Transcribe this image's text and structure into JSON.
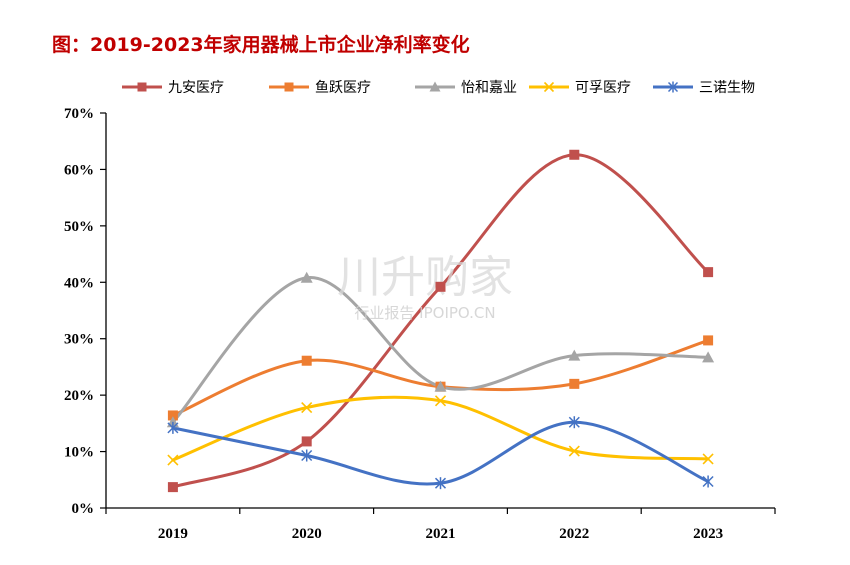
{
  "chart_data": {
    "type": "line",
    "title": "图：2019-2023年家用器械上市企业净利率变化",
    "categories": [
      "2019",
      "2020",
      "2021",
      "2022",
      "2023"
    ],
    "ylim": [
      0,
      0.7
    ],
    "yticks": [
      {
        "value": 0.0,
        "label": "0%"
      },
      {
        "value": 0.1,
        "label": "10%"
      },
      {
        "value": 0.2,
        "label": "20%"
      },
      {
        "value": 0.3,
        "label": "30%"
      },
      {
        "value": 0.4,
        "label": "40%"
      },
      {
        "value": 0.5,
        "label": "50%"
      },
      {
        "value": 0.6,
        "label": "60%"
      },
      {
        "value": 0.7,
        "label": "70%"
      }
    ],
    "grid": false,
    "smooth": true,
    "legend_position": "top",
    "series": [
      {
        "name": "九安医疗",
        "color": "#c0504d",
        "marker": "square",
        "values": [
          0.037,
          0.118,
          0.392,
          0.626,
          0.418
        ]
      },
      {
        "name": "鱼跃医疗",
        "color": "#ed7d31",
        "marker": "square",
        "values": [
          0.164,
          0.261,
          0.215,
          0.22,
          0.297
        ]
      },
      {
        "name": "怡和嘉业",
        "color": "#a5a5a5",
        "marker": "triangle",
        "values": [
          0.152,
          0.408,
          0.215,
          0.27,
          0.267
        ]
      },
      {
        "name": "可孚医疗",
        "color": "#ffc000",
        "marker": "x",
        "values": [
          0.085,
          0.178,
          0.19,
          0.101,
          0.087
        ]
      },
      {
        "name": "三诺生物",
        "color": "#4472c4",
        "marker": "star",
        "values": [
          0.142,
          0.093,
          0.044,
          0.152,
          0.047
        ]
      }
    ]
  },
  "watermark": {
    "main": "川升购家",
    "sub": "行业报告 IPOIPO.CN"
  }
}
